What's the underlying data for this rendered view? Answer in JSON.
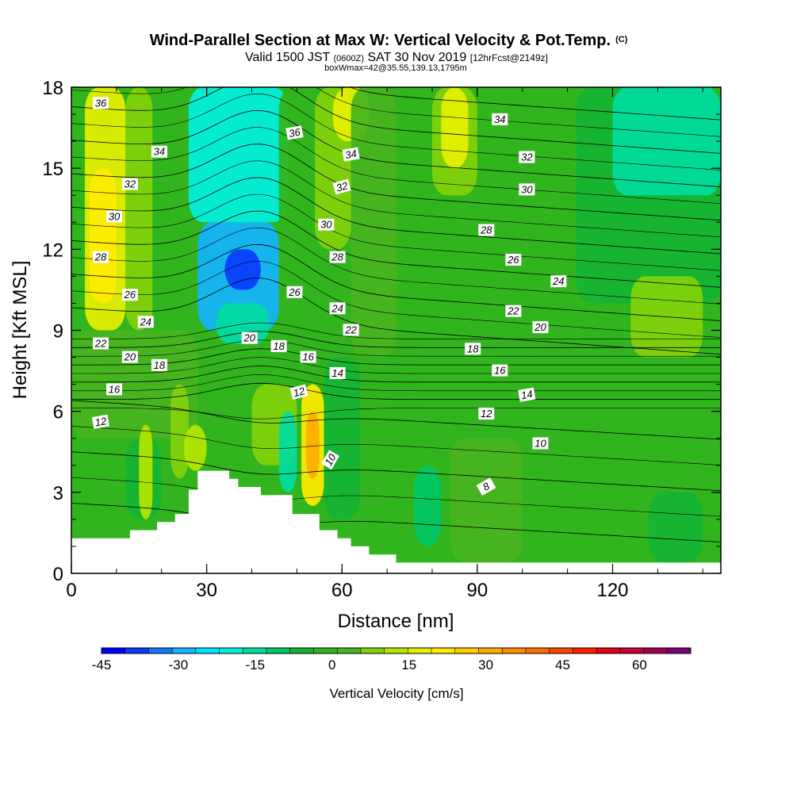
{
  "header": {
    "title_main": "Wind-Parallel Section at Max W: Vertical Velocity & Pot.Temp.",
    "title_mark": "(C)",
    "subtitle_pre": "Valid 1500 JST",
    "subtitle_z": "(0600Z)",
    "subtitle_date": "SAT 30 Nov 2019",
    "subtitle_fcst": "[12hrFcst@2149z]",
    "info": "boxWmax=42@35.55,139.13,1795m"
  },
  "chart_data": {
    "type": "heatmap",
    "description_series": "vertical velocity (filled) with potential temperature contours",
    "xlabel": "Distance [nm]",
    "ylabel": "Height [Kft MSL]",
    "xlim": [
      0,
      144
    ],
    "ylim": [
      0,
      18
    ],
    "x_ticks": [
      "0",
      "30",
      "60",
      "90",
      "120"
    ],
    "x_tick_values": [
      0,
      30,
      60,
      90,
      120
    ],
    "y_ticks": [
      "0",
      "3",
      "6",
      "9",
      "12",
      "15",
      "18"
    ],
    "y_tick_values": [
      0,
      3,
      6,
      9,
      12,
      15,
      18
    ],
    "terrain": [
      [
        0,
        1.3
      ],
      [
        13,
        1.3
      ],
      [
        13,
        1.6
      ],
      [
        19,
        1.6
      ],
      [
        19,
        1.9
      ],
      [
        23,
        1.9
      ],
      [
        23,
        2.2
      ],
      [
        26,
        2.2
      ],
      [
        26,
        3.1
      ],
      [
        28,
        3.1
      ],
      [
        28,
        3.8
      ],
      [
        35,
        3.8
      ],
      [
        35,
        3.5
      ],
      [
        37,
        3.5
      ],
      [
        37,
        3.2
      ],
      [
        39,
        3.2
      ],
      [
        39,
        3.2
      ],
      [
        42,
        3.2
      ],
      [
        42,
        2.9
      ],
      [
        49,
        2.9
      ],
      [
        49,
        2.2
      ],
      [
        55,
        2.2
      ],
      [
        55,
        1.6
      ],
      [
        59,
        1.6
      ],
      [
        59,
        1.3
      ],
      [
        62,
        1.3
      ],
      [
        62,
        1.0
      ],
      [
        66,
        1.0
      ],
      [
        66,
        0.7
      ],
      [
        72,
        0.7
      ],
      [
        72,
        0.4
      ],
      [
        144,
        0.4
      ]
    ],
    "velocity_cells": [
      {
        "x": [
          0,
          3
        ],
        "y": [
          2,
          9
        ],
        "v": 2
      },
      {
        "x": [
          3,
          12
        ],
        "y": [
          9,
          18
        ],
        "v": 22
      },
      {
        "x": [
          4,
          10
        ],
        "y": [
          10,
          15
        ],
        "v": 28
      },
      {
        "x": [
          12,
          18
        ],
        "y": [
          9,
          18
        ],
        "v": 12
      },
      {
        "x": [
          0,
          28
        ],
        "y": [
          5,
          9
        ],
        "v": 6
      },
      {
        "x": [
          12,
          20
        ],
        "y": [
          2,
          5
        ],
        "v": -4
      },
      {
        "x": [
          15,
          18
        ],
        "y": [
          2,
          5.5
        ],
        "v": 15
      },
      {
        "x": [
          22,
          26
        ],
        "y": [
          3.5,
          7
        ],
        "v": 10
      },
      {
        "x": [
          25,
          30
        ],
        "y": [
          3.8,
          5.5
        ],
        "v": 15
      },
      {
        "x": [
          18,
          26
        ],
        "y": [
          9,
          18
        ],
        "v": 0
      },
      {
        "x": [
          26,
          48
        ],
        "y": [
          13,
          18
        ],
        "v": -18
      },
      {
        "x": [
          28,
          46
        ],
        "y": [
          9,
          13
        ],
        "v": -26
      },
      {
        "x": [
          34,
          42
        ],
        "y": [
          10.5,
          12
        ],
        "v": -40
      },
      {
        "x": [
          32,
          44
        ],
        "y": [
          8.5,
          10
        ],
        "v": -15
      },
      {
        "x": [
          46,
          54
        ],
        "y": [
          8,
          18
        ],
        "v": 0
      },
      {
        "x": [
          54,
          62
        ],
        "y": [
          12,
          18
        ],
        "v": 12
      },
      {
        "x": [
          58,
          66
        ],
        "y": [
          16,
          18
        ],
        "v": 24
      },
      {
        "x": [
          62,
          72
        ],
        "y": [
          8,
          18
        ],
        "v": 8
      },
      {
        "x": [
          40,
          50
        ],
        "y": [
          4,
          7
        ],
        "v": 10
      },
      {
        "x": [
          46,
          50
        ],
        "y": [
          3,
          6
        ],
        "v": -12
      },
      {
        "x": [
          51,
          56
        ],
        "y": [
          2.5,
          7
        ],
        "v": 26
      },
      {
        "x": [
          52,
          55
        ],
        "y": [
          3.5,
          6
        ],
        "v": 36
      },
      {
        "x": [
          56,
          64
        ],
        "y": [
          2,
          8
        ],
        "v": -5
      },
      {
        "x": [
          72,
          82
        ],
        "y": [
          10,
          18
        ],
        "v": 4
      },
      {
        "x": [
          80,
          90
        ],
        "y": [
          14,
          18
        ],
        "v": 14
      },
      {
        "x": [
          82,
          88
        ],
        "y": [
          15,
          18
        ],
        "v": 20
      },
      {
        "x": [
          90,
          104
        ],
        "y": [
          8,
          18
        ],
        "v": 0
      },
      {
        "x": [
          72,
          80
        ],
        "y": [
          1,
          6
        ],
        "v": 2
      },
      {
        "x": [
          76,
          82
        ],
        "y": [
          1,
          4
        ],
        "v": -10
      },
      {
        "x": [
          84,
          100
        ],
        "y": [
          0.4,
          5
        ],
        "v": 8
      },
      {
        "x": [
          100,
          112
        ],
        "y": [
          0.4,
          6
        ],
        "v": 2
      },
      {
        "x": [
          112,
          144
        ],
        "y": [
          10,
          18
        ],
        "v": -5
      },
      {
        "x": [
          120,
          144
        ],
        "y": [
          14,
          18
        ],
        "v": -12
      },
      {
        "x": [
          124,
          140
        ],
        "y": [
          8,
          11
        ],
        "v": 10
      },
      {
        "x": [
          112,
          144
        ],
        "y": [
          3,
          8
        ],
        "v": 2
      },
      {
        "x": [
          128,
          140
        ],
        "y": [
          0.4,
          3
        ],
        "v": -4
      }
    ],
    "theta_levels": [
      8,
      10,
      12,
      14,
      16,
      18,
      20,
      22,
      24,
      26,
      28,
      30,
      32,
      34,
      36
    ],
    "theta_labels": [
      {
        "x": 6.5,
        "y": 17.4,
        "text": "36",
        "rot": 0
      },
      {
        "x": 19.5,
        "y": 15.6,
        "text": "34",
        "rot": 0
      },
      {
        "x": 13,
        "y": 14.4,
        "text": "32",
        "rot": 0
      },
      {
        "x": 9.5,
        "y": 13.2,
        "text": "30",
        "rot": 0
      },
      {
        "x": 6.5,
        "y": 11.7,
        "text": "28",
        "rot": 0
      },
      {
        "x": 13,
        "y": 10.3,
        "text": "26",
        "rot": 0
      },
      {
        "x": 16.5,
        "y": 9.3,
        "text": "24",
        "rot": 0
      },
      {
        "x": 6.5,
        "y": 8.5,
        "text": "22",
        "rot": 0
      },
      {
        "x": 13,
        "y": 8.0,
        "text": "20",
        "rot": 0
      },
      {
        "x": 19.5,
        "y": 7.7,
        "text": "18",
        "rot": 0
      },
      {
        "x": 9.5,
        "y": 6.8,
        "text": "16",
        "rot": 0
      },
      {
        "x": 6.5,
        "y": 5.6,
        "text": "12",
        "rot": -10
      },
      {
        "x": 49.5,
        "y": 16.3,
        "text": "36",
        "rot": -10
      },
      {
        "x": 62,
        "y": 15.5,
        "text": "34",
        "rot": -10
      },
      {
        "x": 60,
        "y": 14.3,
        "text": "32",
        "rot": -15
      },
      {
        "x": 56.5,
        "y": 12.9,
        "text": "30",
        "rot": 0
      },
      {
        "x": 59,
        "y": 11.7,
        "text": "28",
        "rot": 0
      },
      {
        "x": 49.5,
        "y": 10.4,
        "text": "26",
        "rot": 0
      },
      {
        "x": 59,
        "y": 9.8,
        "text": "24",
        "rot": 0
      },
      {
        "x": 62,
        "y": 9.0,
        "text": "22",
        "rot": 0
      },
      {
        "x": 39.5,
        "y": 8.7,
        "text": "20",
        "rot": 0
      },
      {
        "x": 46,
        "y": 8.4,
        "text": "18",
        "rot": 0
      },
      {
        "x": 52.5,
        "y": 8.0,
        "text": "16",
        "rot": 0
      },
      {
        "x": 59,
        "y": 7.4,
        "text": "14",
        "rot": 0
      },
      {
        "x": 50.5,
        "y": 6.7,
        "text": "12",
        "rot": -15
      },
      {
        "x": 57.5,
        "y": 4.2,
        "text": "10",
        "rot": -60
      },
      {
        "x": 95,
        "y": 16.8,
        "text": "34",
        "rot": 0
      },
      {
        "x": 101,
        "y": 15.4,
        "text": "32",
        "rot": 0
      },
      {
        "x": 101,
        "y": 14.2,
        "text": "30",
        "rot": 0
      },
      {
        "x": 92,
        "y": 12.7,
        "text": "28",
        "rot": 0
      },
      {
        "x": 98,
        "y": 11.6,
        "text": "26",
        "rot": 0
      },
      {
        "x": 108,
        "y": 10.8,
        "text": "24",
        "rot": 0
      },
      {
        "x": 98,
        "y": 9.7,
        "text": "22",
        "rot": 0
      },
      {
        "x": 104,
        "y": 9.1,
        "text": "20",
        "rot": 0
      },
      {
        "x": 89,
        "y": 8.3,
        "text": "18",
        "rot": 0
      },
      {
        "x": 95,
        "y": 7.5,
        "text": "16",
        "rot": 0
      },
      {
        "x": 101,
        "y": 6.6,
        "text": "14",
        "rot": -10
      },
      {
        "x": 92,
        "y": 5.9,
        "text": "12",
        "rot": 0
      },
      {
        "x": 104,
        "y": 4.8,
        "text": "10",
        "rot": 0
      },
      {
        "x": 92,
        "y": 3.2,
        "text": "8",
        "rot": -30
      }
    ]
  },
  "colorbar": {
    "label": "Vertical Velocity [cm/s]",
    "min": -45,
    "max": 70,
    "step": 5,
    "tick_labels": [
      "-45",
      "-30",
      "-15",
      "0",
      "15",
      "30",
      "45",
      "60"
    ],
    "tick_values": [
      -45,
      -30,
      -15,
      0,
      15,
      30,
      45,
      60
    ],
    "colors": [
      "#0000ff",
      "#0a3cff",
      "#1478ff",
      "#14b4ff",
      "#00e6ff",
      "#00f0e0",
      "#00dca0",
      "#00c864",
      "#14b432",
      "#32b41e",
      "#46b41e",
      "#82d20a",
      "#b4e600",
      "#e6f000",
      "#ffeb00",
      "#ffcd00",
      "#ffaf00",
      "#ff8c00",
      "#ff6e00",
      "#ff4600",
      "#ff1e00",
      "#e60014",
      "#c80032",
      "#a00050",
      "#780078"
    ]
  }
}
